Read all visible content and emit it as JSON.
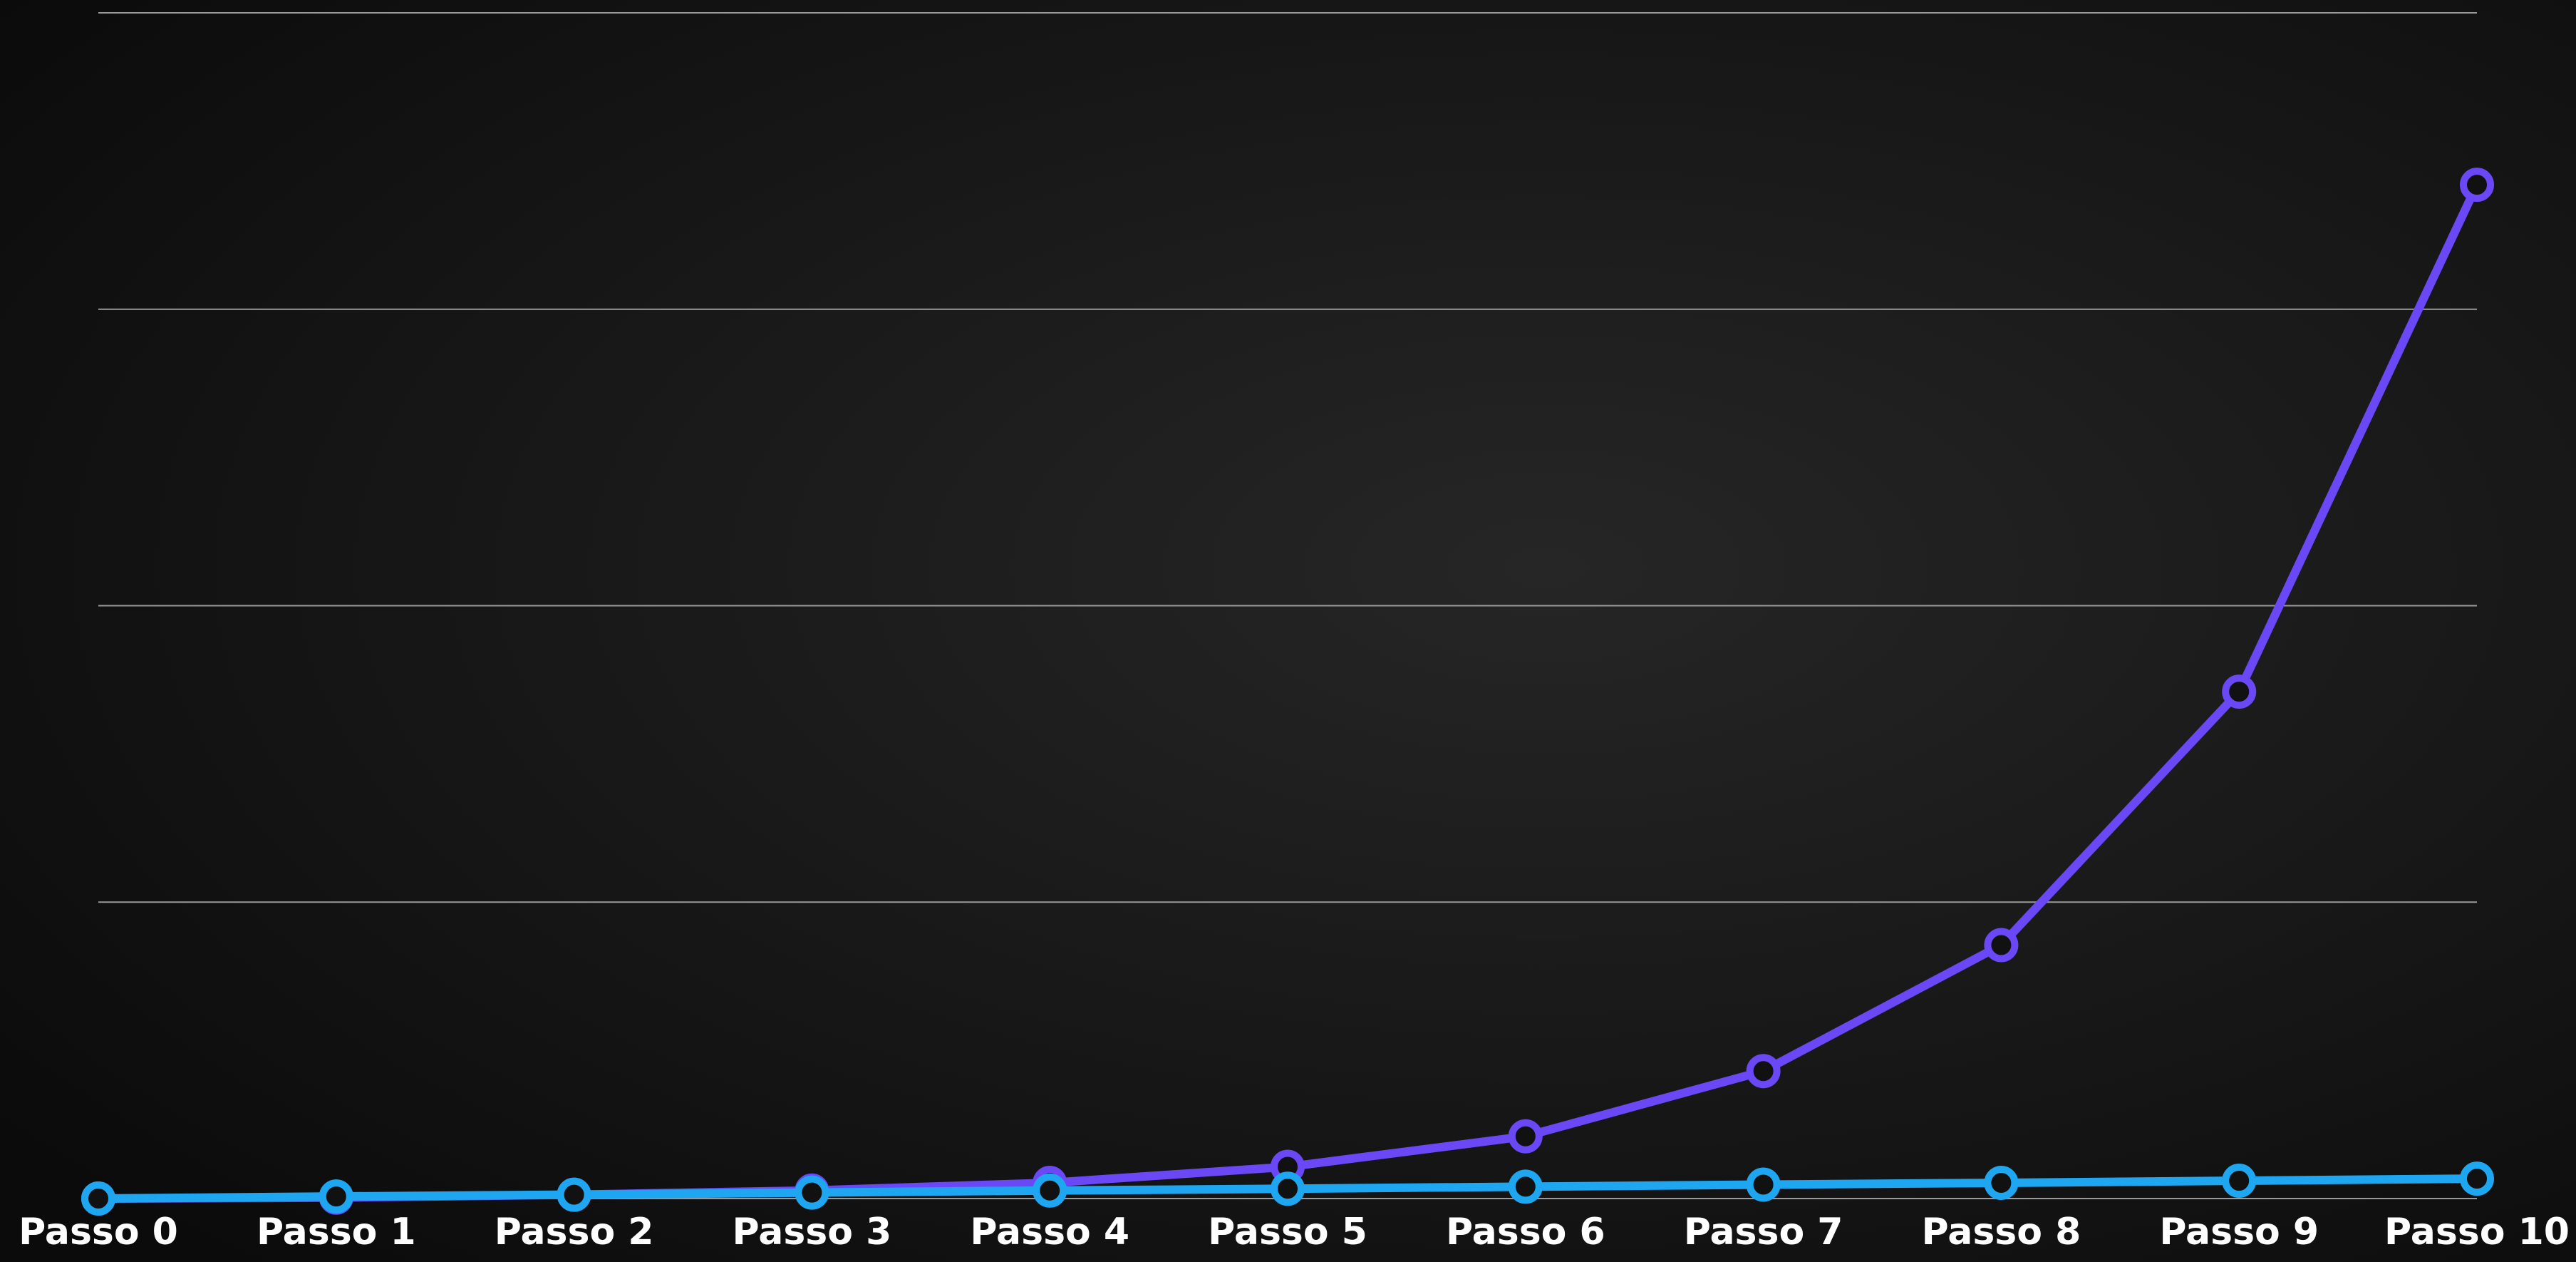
{
  "chart_data": {
    "type": "line",
    "categories": [
      "Passo 0",
      "Passo 1",
      "Passo 2",
      "Passo 3",
      "Passo 4",
      "Passo 5",
      "Passo 6",
      "Passo 7",
      "Passo 8",
      "Passo 9",
      "Passo 10"
    ],
    "series": [
      {
        "color": "#6a48f5",
        "values": [
          0,
          0.003,
          0.013,
          0.027,
          0.053,
          0.107,
          0.21,
          0.43,
          0.855,
          1.71,
          3.42
        ]
      },
      {
        "color": "#1ea7f0",
        "values": [
          0,
          0.007,
          0.013,
          0.02,
          0.027,
          0.033,
          0.04,
          0.047,
          0.053,
          0.06,
          0.067
        ]
      }
    ],
    "ylim": [
      0,
      4
    ],
    "yticks": [
      0,
      1,
      2,
      3,
      4
    ],
    "grid": true
  }
}
